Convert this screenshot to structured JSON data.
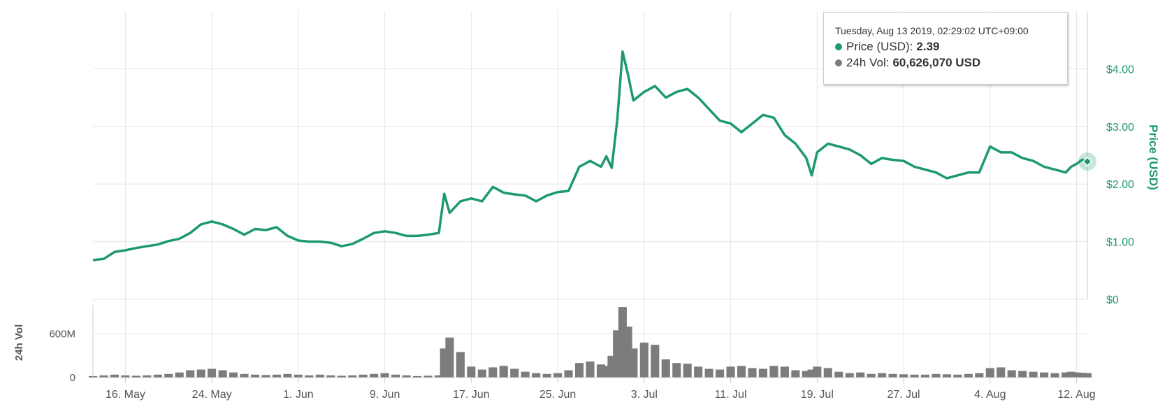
{
  "colors": {
    "price": "#1d9a6c",
    "volume": "#7c7c7c",
    "grid": "#e6e6e6"
  },
  "tooltip": {
    "date": "Tuesday, Aug 13 2019, 02:29:02 UTC+09:00",
    "price_label": "Price (USD):",
    "price_value": "2.39",
    "vol_label": "24h Vol:",
    "vol_value": "60,626,070 USD"
  },
  "chart_data": {
    "type": "line",
    "title": "",
    "x_axis": {
      "type": "date",
      "range": [
        "2019-05-13",
        "2019-08-13"
      ],
      "ticks": [
        {
          "date": "2019-05-16",
          "label": "16. May"
        },
        {
          "date": "2019-05-24",
          "label": "24. May"
        },
        {
          "date": "2019-06-01",
          "label": "1. Jun"
        },
        {
          "date": "2019-06-09",
          "label": "9. Jun"
        },
        {
          "date": "2019-06-17",
          "label": "17. Jun"
        },
        {
          "date": "2019-06-25",
          "label": "25. Jun"
        },
        {
          "date": "2019-07-03",
          "label": "3. Jul"
        },
        {
          "date": "2019-07-11",
          "label": "11. Jul"
        },
        {
          "date": "2019-07-19",
          "label": "19. Jul"
        },
        {
          "date": "2019-07-27",
          "label": "27. Jul"
        },
        {
          "date": "2019-08-04",
          "label": "4. Aug"
        },
        {
          "date": "2019-08-12",
          "label": "12. Aug"
        }
      ]
    },
    "price_axis": {
      "title": "Price (USD)",
      "range": [
        0,
        5
      ],
      "ticks": [
        {
          "value": 0,
          "label": "$0"
        },
        {
          "value": 1,
          "label": "$1.00"
        },
        {
          "value": 2,
          "label": "$2.00"
        },
        {
          "value": 3,
          "label": "$3.00"
        },
        {
          "value": 4,
          "label": "$4.00"
        }
      ]
    },
    "volume_axis": {
      "title": "24h Vol",
      "range": [
        0,
        1000000000
      ],
      "ticks": [
        {
          "value": 0,
          "label": "0"
        },
        {
          "value": 600000000,
          "label": "600M"
        }
      ]
    },
    "series": [
      {
        "name": "Price (USD)",
        "type": "line",
        "points": [
          [
            "2019-05-13",
            0.68
          ],
          [
            "2019-05-14",
            0.7
          ],
          [
            "2019-05-15",
            0.82
          ],
          [
            "2019-05-16",
            0.85
          ],
          [
            "2019-05-17",
            0.89
          ],
          [
            "2019-05-18",
            0.92
          ],
          [
            "2019-05-19",
            0.95
          ],
          [
            "2019-05-20",
            1.01
          ],
          [
            "2019-05-21",
            1.05
          ],
          [
            "2019-05-22",
            1.15
          ],
          [
            "2019-05-23",
            1.3
          ],
          [
            "2019-05-24",
            1.35
          ],
          [
            "2019-05-25",
            1.3
          ],
          [
            "2019-05-26",
            1.22
          ],
          [
            "2019-05-27",
            1.12
          ],
          [
            "2019-05-28",
            1.22
          ],
          [
            "2019-05-29",
            1.2
          ],
          [
            "2019-05-30",
            1.25
          ],
          [
            "2019-05-31",
            1.1
          ],
          [
            "2019-06-01",
            1.02
          ],
          [
            "2019-06-02",
            1.0
          ],
          [
            "2019-06-03",
            1.0
          ],
          [
            "2019-06-04",
            0.98
          ],
          [
            "2019-06-05",
            0.92
          ],
          [
            "2019-06-06",
            0.96
          ],
          [
            "2019-06-07",
            1.05
          ],
          [
            "2019-06-08",
            1.15
          ],
          [
            "2019-06-09",
            1.18
          ],
          [
            "2019-06-10",
            1.15
          ],
          [
            "2019-06-11",
            1.1
          ],
          [
            "2019-06-12",
            1.1
          ],
          [
            "2019-06-13",
            1.12
          ],
          [
            "2019-06-14",
            1.15
          ],
          [
            "2019-06-14T12",
            1.83
          ],
          [
            "2019-06-15",
            1.5
          ],
          [
            "2019-06-16",
            1.7
          ],
          [
            "2019-06-17",
            1.75
          ],
          [
            "2019-06-18",
            1.7
          ],
          [
            "2019-06-19",
            1.95
          ],
          [
            "2019-06-20",
            1.85
          ],
          [
            "2019-06-21",
            1.82
          ],
          [
            "2019-06-22",
            1.8
          ],
          [
            "2019-06-23",
            1.7
          ],
          [
            "2019-06-24",
            1.8
          ],
          [
            "2019-06-25",
            1.86
          ],
          [
            "2019-06-26",
            1.88
          ],
          [
            "2019-06-27",
            2.3
          ],
          [
            "2019-06-28",
            2.4
          ],
          [
            "2019-06-29",
            2.3
          ],
          [
            "2019-06-29T12",
            2.48
          ],
          [
            "2019-06-30",
            2.28
          ],
          [
            "2019-06-30T12",
            3.1
          ],
          [
            "2019-07-01",
            4.3
          ],
          [
            "2019-07-01T12",
            3.9
          ],
          [
            "2019-07-02",
            3.45
          ],
          [
            "2019-07-03",
            3.6
          ],
          [
            "2019-07-04",
            3.7
          ],
          [
            "2019-07-05",
            3.5
          ],
          [
            "2019-07-06",
            3.6
          ],
          [
            "2019-07-07",
            3.65
          ],
          [
            "2019-07-08",
            3.5
          ],
          [
            "2019-07-09",
            3.3
          ],
          [
            "2019-07-10",
            3.1
          ],
          [
            "2019-07-11",
            3.05
          ],
          [
            "2019-07-12",
            2.9
          ],
          [
            "2019-07-13",
            3.05
          ],
          [
            "2019-07-14",
            3.2
          ],
          [
            "2019-07-15",
            3.15
          ],
          [
            "2019-07-16",
            2.85
          ],
          [
            "2019-07-17",
            2.7
          ],
          [
            "2019-07-18",
            2.45
          ],
          [
            "2019-07-18T12",
            2.15
          ],
          [
            "2019-07-19",
            2.55
          ],
          [
            "2019-07-20",
            2.7
          ],
          [
            "2019-07-21",
            2.65
          ],
          [
            "2019-07-22",
            2.6
          ],
          [
            "2019-07-23",
            2.5
          ],
          [
            "2019-07-24",
            2.35
          ],
          [
            "2019-07-25",
            2.45
          ],
          [
            "2019-07-26",
            2.42
          ],
          [
            "2019-07-27",
            2.4
          ],
          [
            "2019-07-28",
            2.3
          ],
          [
            "2019-07-29",
            2.25
          ],
          [
            "2019-07-30",
            2.2
          ],
          [
            "2019-07-31",
            2.1
          ],
          [
            "2019-08-01",
            2.15
          ],
          [
            "2019-08-02",
            2.2
          ],
          [
            "2019-08-03",
            2.2
          ],
          [
            "2019-08-04",
            2.65
          ],
          [
            "2019-08-05",
            2.55
          ],
          [
            "2019-08-06",
            2.55
          ],
          [
            "2019-08-07",
            2.45
          ],
          [
            "2019-08-08",
            2.4
          ],
          [
            "2019-08-09",
            2.3
          ],
          [
            "2019-08-10",
            2.25
          ],
          [
            "2019-08-11",
            2.2
          ],
          [
            "2019-08-11T12",
            2.3
          ],
          [
            "2019-08-12",
            2.35
          ],
          [
            "2019-08-12T12",
            2.42
          ],
          [
            "2019-08-13",
            2.39
          ]
        ]
      },
      {
        "name": "24h Vol",
        "type": "bar",
        "points": [
          [
            "2019-05-13",
            20000000
          ],
          [
            "2019-05-14",
            30000000
          ],
          [
            "2019-05-15",
            40000000
          ],
          [
            "2019-05-16",
            30000000
          ],
          [
            "2019-05-17",
            25000000
          ],
          [
            "2019-05-18",
            30000000
          ],
          [
            "2019-05-19",
            40000000
          ],
          [
            "2019-05-20",
            50000000
          ],
          [
            "2019-05-21",
            70000000
          ],
          [
            "2019-05-22",
            100000000
          ],
          [
            "2019-05-23",
            110000000
          ],
          [
            "2019-05-24",
            120000000
          ],
          [
            "2019-05-25",
            100000000
          ],
          [
            "2019-05-26",
            70000000
          ],
          [
            "2019-05-27",
            50000000
          ],
          [
            "2019-05-28",
            40000000
          ],
          [
            "2019-05-29",
            35000000
          ],
          [
            "2019-05-30",
            40000000
          ],
          [
            "2019-05-31",
            50000000
          ],
          [
            "2019-06-01",
            40000000
          ],
          [
            "2019-06-02",
            30000000
          ],
          [
            "2019-06-03",
            40000000
          ],
          [
            "2019-06-04",
            30000000
          ],
          [
            "2019-06-05",
            25000000
          ],
          [
            "2019-06-06",
            30000000
          ],
          [
            "2019-06-07",
            40000000
          ],
          [
            "2019-06-08",
            50000000
          ],
          [
            "2019-06-09",
            60000000
          ],
          [
            "2019-06-10",
            40000000
          ],
          [
            "2019-06-11",
            30000000
          ],
          [
            "2019-06-12",
            20000000
          ],
          [
            "2019-06-13",
            25000000
          ],
          [
            "2019-06-14",
            30000000
          ],
          [
            "2019-06-14T12",
            400000000
          ],
          [
            "2019-06-15",
            550000000
          ],
          [
            "2019-06-16",
            350000000
          ],
          [
            "2019-06-17",
            150000000
          ],
          [
            "2019-06-18",
            110000000
          ],
          [
            "2019-06-19",
            140000000
          ],
          [
            "2019-06-20",
            160000000
          ],
          [
            "2019-06-21",
            120000000
          ],
          [
            "2019-06-22",
            80000000
          ],
          [
            "2019-06-23",
            60000000
          ],
          [
            "2019-06-24",
            50000000
          ],
          [
            "2019-06-25",
            60000000
          ],
          [
            "2019-06-26",
            100000000
          ],
          [
            "2019-06-27",
            200000000
          ],
          [
            "2019-06-28",
            220000000
          ],
          [
            "2019-06-29",
            180000000
          ],
          [
            "2019-06-29T12",
            160000000
          ],
          [
            "2019-06-30",
            300000000
          ],
          [
            "2019-06-30T12",
            650000000
          ],
          [
            "2019-07-01",
            970000000
          ],
          [
            "2019-07-01T12",
            700000000
          ],
          [
            "2019-07-02",
            400000000
          ],
          [
            "2019-07-03",
            480000000
          ],
          [
            "2019-07-04",
            450000000
          ],
          [
            "2019-07-05",
            250000000
          ],
          [
            "2019-07-06",
            200000000
          ],
          [
            "2019-07-07",
            190000000
          ],
          [
            "2019-07-08",
            150000000
          ],
          [
            "2019-07-09",
            120000000
          ],
          [
            "2019-07-10",
            110000000
          ],
          [
            "2019-07-11",
            150000000
          ],
          [
            "2019-07-12",
            160000000
          ],
          [
            "2019-07-13",
            130000000
          ],
          [
            "2019-07-14",
            120000000
          ],
          [
            "2019-07-15",
            160000000
          ],
          [
            "2019-07-16",
            150000000
          ],
          [
            "2019-07-17",
            100000000
          ],
          [
            "2019-07-18",
            90000000
          ],
          [
            "2019-07-18T12",
            110000000
          ],
          [
            "2019-07-19",
            150000000
          ],
          [
            "2019-07-20",
            130000000
          ],
          [
            "2019-07-21",
            80000000
          ],
          [
            "2019-07-22",
            60000000
          ],
          [
            "2019-07-23",
            70000000
          ],
          [
            "2019-07-24",
            50000000
          ],
          [
            "2019-07-25",
            60000000
          ],
          [
            "2019-07-26",
            50000000
          ],
          [
            "2019-07-27",
            45000000
          ],
          [
            "2019-07-28",
            40000000
          ],
          [
            "2019-07-29",
            40000000
          ],
          [
            "2019-07-30",
            50000000
          ],
          [
            "2019-07-31",
            45000000
          ],
          [
            "2019-08-01",
            40000000
          ],
          [
            "2019-08-02",
            50000000
          ],
          [
            "2019-08-03",
            60000000
          ],
          [
            "2019-08-04",
            130000000
          ],
          [
            "2019-08-05",
            140000000
          ],
          [
            "2019-08-06",
            100000000
          ],
          [
            "2019-08-07",
            90000000
          ],
          [
            "2019-08-08",
            80000000
          ],
          [
            "2019-08-09",
            70000000
          ],
          [
            "2019-08-10",
            60000000
          ],
          [
            "2019-08-11",
            70000000
          ],
          [
            "2019-08-11T12",
            80000000
          ],
          [
            "2019-08-12",
            70000000
          ],
          [
            "2019-08-12T12",
            65000000
          ],
          [
            "2019-08-13",
            60626070
          ]
        ]
      }
    ],
    "hover_point": {
      "date": "2019-08-13",
      "price": 2.39,
      "volume": 60626070
    }
  }
}
